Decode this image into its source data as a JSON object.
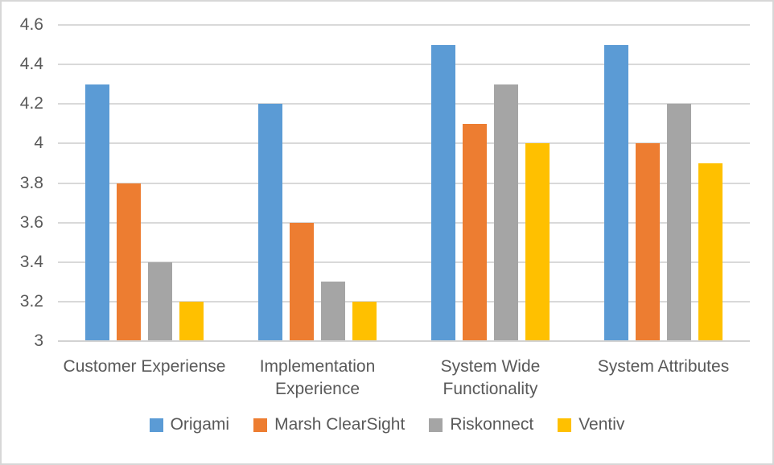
{
  "chart_data": {
    "type": "bar",
    "title": "",
    "categories": [
      "Customer Experiense",
      "Implementation Experience",
      "System Wide Functionality",
      "System Attributes"
    ],
    "series": [
      {
        "name": "Origami",
        "color": "#5B9BD5",
        "values": [
          4.3,
          4.2,
          4.5,
          4.5
        ]
      },
      {
        "name": "Marsh ClearSight",
        "color": "#ED7D31",
        "values": [
          3.8,
          3.6,
          4.1,
          4.0
        ]
      },
      {
        "name": "Riskonnect",
        "color": "#A5A5A5",
        "values": [
          3.4,
          3.3,
          4.3,
          4.2
        ]
      },
      {
        "name": "Ventiv",
        "color": "#FFC000",
        "values": [
          3.2,
          3.2,
          4.0,
          3.9
        ]
      }
    ],
    "xlabel": "",
    "ylabel": "",
    "ylim": [
      3,
      4.6
    ],
    "y_tick_step": 0.2,
    "y_tick_labels": [
      "3",
      "3.2",
      "3.4",
      "3.6",
      "3.8",
      "4",
      "4.2",
      "4.4",
      "4.6"
    ],
    "grid": true,
    "legend_position": "bottom"
  },
  "palette": {
    "text": "#595959",
    "gridline": "#D9D9D9",
    "axis_line": "#D2D2D2",
    "frame_border": "#D7D7D7",
    "background": "#FFFFFF"
  }
}
